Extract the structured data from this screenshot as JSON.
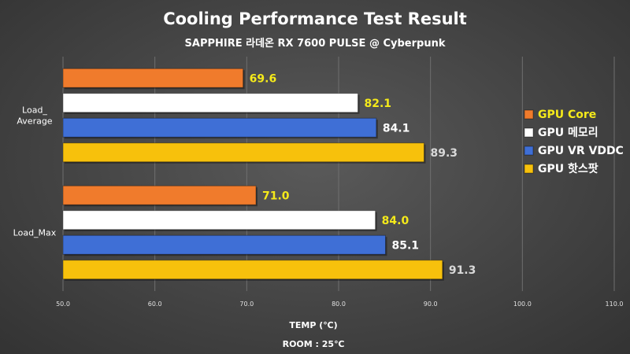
{
  "chart_data": {
    "type": "bar",
    "orientation": "horizontal",
    "title": "Cooling Performance Test Result",
    "subtitle": "SAPPHIRE 라데온 RX 7600 PULSE @ Cyberpunk",
    "xlabel": "TEMP (℃)",
    "note": "ROOM : 25℃",
    "categories": [
      [
        "Load_",
        "Average"
      ],
      [
        "Load_Max"
      ]
    ],
    "xlim": [
      50,
      110
    ],
    "xticks": [
      "50.0",
      "60.0",
      "70.0",
      "80.0",
      "90.0",
      "100.0",
      "110.0"
    ],
    "grid": true,
    "legend_position": "right",
    "series": [
      {
        "name": "GPU Core",
        "values": [
          69.6,
          71.0
        ],
        "labels": [
          "69.6",
          "71.0"
        ],
        "color": "#f07b2c",
        "label_color": "#f5ea1a"
      },
      {
        "name": "GPU 메모리",
        "values": [
          82.1,
          84.0
        ],
        "labels": [
          "82.1",
          "84.0"
        ],
        "color": "#ffffff",
        "label_color": "#f5ea1a"
      },
      {
        "name": "GPU VR VDDC",
        "values": [
          84.1,
          85.1
        ],
        "labels": [
          "84.1",
          "85.1"
        ],
        "color": "#3f6fd6",
        "label_color": "#ffffff"
      },
      {
        "name": "GPU 핫스팟",
        "values": [
          89.3,
          91.3
        ],
        "labels": [
          "89.3",
          "91.3"
        ],
        "color": "#f7c10c",
        "label_color": "#d9d9d9"
      }
    ],
    "legend_text_colors": [
      "#f5ea1a",
      "#ffffff",
      "#ffffff",
      "#ffffff"
    ]
  }
}
